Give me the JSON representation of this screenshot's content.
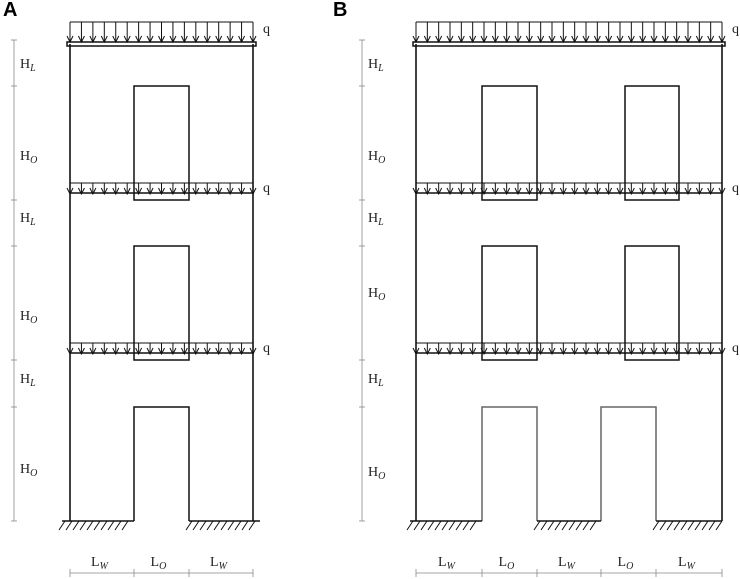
{
  "panels": [
    {
      "label": "A",
      "heights": [
        {
          "main": "H",
          "sub": "L"
        },
        {
          "main": "H",
          "sub": "O"
        },
        {
          "main": "H",
          "sub": "L"
        },
        {
          "main": "H",
          "sub": "O"
        },
        {
          "main": "H",
          "sub": "L"
        },
        {
          "main": "H",
          "sub": "O"
        }
      ],
      "loads": [
        "q",
        "q",
        "q"
      ],
      "widths": [
        {
          "main": "L",
          "sub": "W"
        },
        {
          "main": "L",
          "sub": "O"
        },
        {
          "main": "L",
          "sub": "W"
        }
      ]
    },
    {
      "label": "B",
      "heights": [
        {
          "main": "H",
          "sub": "L"
        },
        {
          "main": "H",
          "sub": "O"
        },
        {
          "main": "H",
          "sub": "L"
        },
        {
          "main": "H",
          "sub": "O"
        },
        {
          "main": "H",
          "sub": "L"
        },
        {
          "main": "H",
          "sub": "O"
        }
      ],
      "loads": [
        "q",
        "q",
        "q"
      ],
      "widths": [
        {
          "main": "L",
          "sub": "W"
        },
        {
          "main": "L",
          "sub": "O"
        },
        {
          "main": "L",
          "sub": "W"
        },
        {
          "main": "L",
          "sub": "O"
        },
        {
          "main": "L",
          "sub": "W"
        }
      ]
    }
  ]
}
